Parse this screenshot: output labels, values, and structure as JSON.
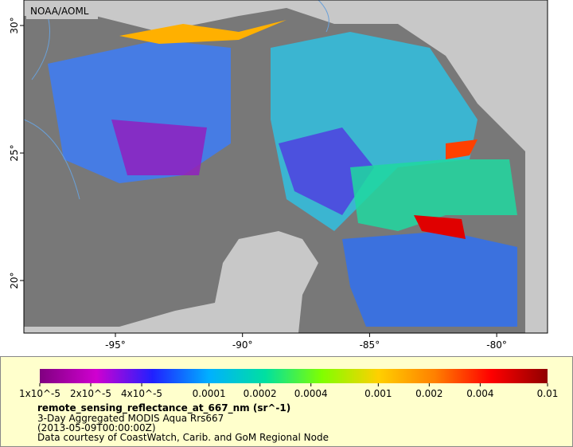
{
  "map": {
    "credit": "NOAA/AOML",
    "xlim": [
      -98.6,
      -78
    ],
    "ylim": [
      17.94,
      31
    ],
    "lon_ticks": [
      {
        "value": -95,
        "label": "-95°"
      },
      {
        "value": -90,
        "label": "-90°"
      },
      {
        "value": -85,
        "label": "-85°"
      },
      {
        "value": -80,
        "label": "-80°"
      }
    ],
    "lat_ticks": [
      {
        "value": 20,
        "label": "20°"
      },
      {
        "value": 25,
        "label": "25°"
      },
      {
        "value": 30,
        "label": "30°"
      }
    ]
  },
  "colorbar": {
    "log_scale": true,
    "lim": [
      1e-05,
      0.01
    ],
    "colors": [
      "#800080",
      "#d000d0",
      "#2020ff",
      "#00b0ff",
      "#00e0a0",
      "#80ff00",
      "#ffd000",
      "#ff8000",
      "#ff0000",
      "#900000"
    ],
    "ticks": [
      {
        "value": 1e-05,
        "label": "1x10^-5"
      },
      {
        "value": 2e-05,
        "label": "2x10^-5"
      },
      {
        "value": 4e-05,
        "label": "4x10^-5"
      },
      0.0001,
      0.0002,
      0.0004,
      0.001,
      0.002,
      0.004,
      0.01
    ]
  },
  "legend": {
    "variable": "remote_sensing_reflectance_at_667_nm (sr^-1)",
    "dataset": "3-Day Aggregated MODIS Aqua Rrs667",
    "time": "(2013-05-09T00:00:00Z)",
    "source": "Data courtesy of CoastWatch, Carib. and GoM Regional Node"
  }
}
